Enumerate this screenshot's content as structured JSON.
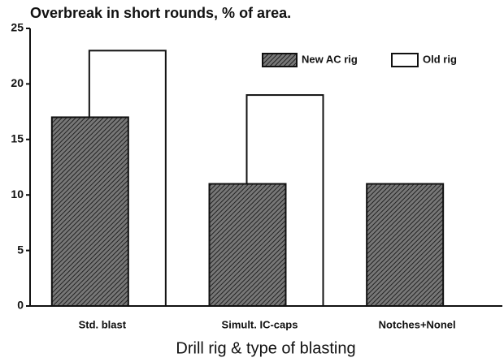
{
  "chart_data": {
    "type": "bar",
    "title": "Overbreak in short rounds, % of area.",
    "x_label": "Drill rig & type of blasting",
    "categories": [
      "Std. blast",
      "Simult. IC-caps",
      "Notches+Nonel"
    ],
    "series": [
      {
        "name": "New AC rig",
        "color": "#4a4a4a",
        "values": [
          17,
          11,
          11
        ]
      },
      {
        "name": "Old rig",
        "color": "#ffffff",
        "values": [
          23,
          19,
          null
        ]
      }
    ],
    "ylim": [
      0,
      25
    ],
    "yticks": [
      0,
      5,
      10,
      15,
      20,
      25
    ],
    "grid": false
  }
}
